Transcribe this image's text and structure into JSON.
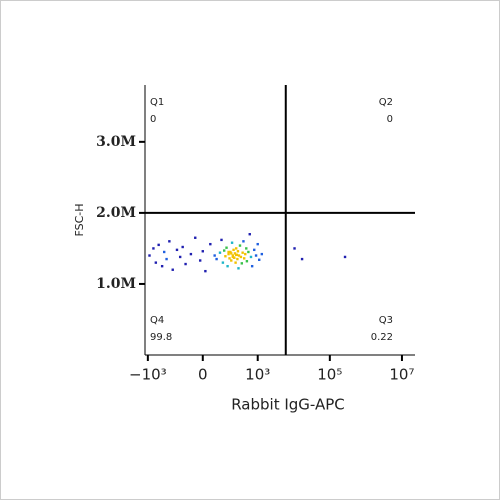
{
  "chart_data": {
    "type": "scatter",
    "x_label": "Rabbit IgG-APC",
    "y_label": "FSC-H",
    "xscale": "biex",
    "xlim": [
      -1200,
      23000000
    ],
    "ylim": [
      0,
      3800000
    ],
    "xticks": [
      {
        "value": -1000,
        "label": "−10³"
      },
      0,
      {
        "value": 1000,
        "label": "10³"
      },
      {
        "value": 100000,
        "label": "10⁵"
      },
      {
        "value": 10000000,
        "label": "10⁷"
      }
    ],
    "yticks": [
      {
        "value": 1000000,
        "label": "1.0M"
      },
      {
        "value": 2000000,
        "label": "2.0M"
      },
      {
        "value": 3000000,
        "label": "3.0M"
      }
    ],
    "gate": {
      "x": 6000,
      "y": 2000000
    },
    "quadrants": [
      {
        "name": "Q1",
        "value": 0
      },
      {
        "name": "Q2",
        "value": 0
      },
      {
        "name": "Q3",
        "value": 0.22
      },
      {
        "name": "Q4",
        "value": 99.8
      }
    ],
    "x": [
      -900,
      -700,
      -600,
      -500,
      -400,
      -350,
      -300,
      -250,
      -200,
      -150,
      -120,
      -100,
      -80,
      -50,
      -30,
      -10,
      0,
      10,
      30,
      50,
      60,
      80,
      90,
      100,
      110,
      120,
      130,
      140,
      150,
      160,
      170,
      180,
      190,
      200,
      210,
      220,
      230,
      240,
      250,
      260,
      270,
      280,
      290,
      300,
      320,
      340,
      360,
      380,
      400,
      420,
      450,
      480,
      500,
      550,
      600,
      650,
      700,
      800,
      900,
      1000,
      1100,
      1300,
      150,
      200,
      250,
      180,
      220,
      10500,
      17000,
      264000
    ],
    "y": [
      1400000,
      1500000,
      1300000,
      1550000,
      1250000,
      1450000,
      1350000,
      1600000,
      1200000,
      1480000,
      1380000,
      1520000,
      1280000,
      1420000,
      1650000,
      1330000,
      1460000,
      1180000,
      1560000,
      1400000,
      1350000,
      1440000,
      1620000,
      1300000,
      1470000,
      1390000,
      1510000,
      1250000,
      1420000,
      1360000,
      1450000,
      1330000,
      1580000,
      1400000,
      1480000,
      1370000,
      1430000,
      1300000,
      1500000,
      1410000,
      1350000,
      1460000,
      1220000,
      1400000,
      1540000,
      1380000,
      1290000,
      1440000,
      1600000,
      1360000,
      1420000,
      1500000,
      1320000,
      1450000,
      1700000,
      1380000,
      1250000,
      1480000,
      1400000,
      1560000,
      1340000,
      1420000,
      1450000,
      1380000,
      1410000,
      1430000,
      1370000,
      1500000,
      1350000,
      1380000
    ]
  }
}
